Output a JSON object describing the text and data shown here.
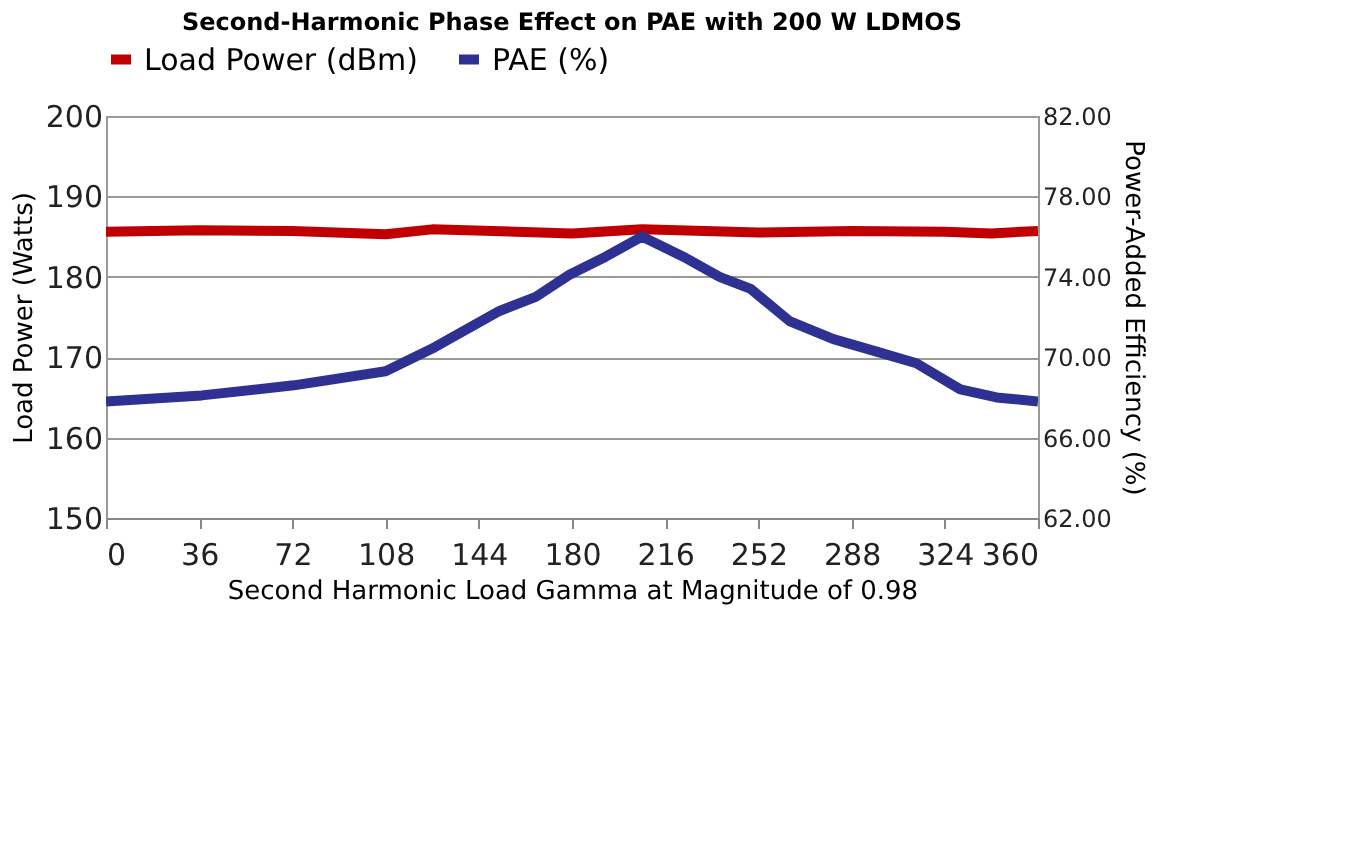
{
  "chart_data": {
    "type": "line",
    "title": "Second-Harmonic Phase Effect on PAE with 200 W LDMOS",
    "xlabel": "Second Harmonic Load Gamma at Magnitude of 0.98",
    "ylabel": "Load Power (Watts)",
    "y2label": "Power-Added Efficiency (%)",
    "series": [
      {
        "name": "Load Power (dBm)",
        "color": "#c00000",
        "x": [
          0,
          36,
          72,
          108,
          126,
          180,
          207,
          252,
          288,
          324,
          342,
          360
        ],
        "values": [
          185.6,
          185.8,
          185.7,
          185.3,
          185.9,
          185.4,
          185.9,
          185.5,
          185.7,
          185.6,
          185.4,
          185.7
        ]
      },
      {
        "name": "PAE (%)",
        "color": "#2e3192",
        "axis": "y2",
        "x": [
          0,
          37,
          72.5,
          108,
          127,
          152,
          166,
          179,
          193,
          207,
          223,
          237,
          249,
          264,
          281,
          297,
          313,
          330,
          344,
          360
        ],
        "values": [
          67.8,
          68.1,
          68.6,
          69.3,
          70.5,
          72.3,
          73.0,
          74.1,
          75.0,
          76.0,
          75.0,
          74.0,
          73.4,
          71.8,
          70.9,
          70.3,
          69.7,
          68.4,
          68.0,
          67.8
        ]
      }
    ],
    "xlim": [
      0,
      360
    ],
    "xticks": [
      0,
      36,
      72,
      108,
      144,
      180,
      216,
      252,
      288,
      324,
      360
    ],
    "ylim": [
      150,
      200
    ],
    "yticks": [
      150,
      160,
      170,
      180,
      190,
      200
    ],
    "y2lim": [
      62,
      82
    ],
    "y2ticks": [
      {
        "value": 62,
        "label": "62.00"
      },
      {
        "value": 66,
        "label": "66.00"
      },
      {
        "value": 70,
        "label": "70.00"
      },
      {
        "value": 74,
        "label": "74.00"
      },
      {
        "value": 78,
        "label": "78.00"
      },
      {
        "value": 82,
        "label": "82.00"
      }
    ],
    "grid": "y",
    "legend": "top",
    "marker": "none",
    "line_style": "solid"
  }
}
